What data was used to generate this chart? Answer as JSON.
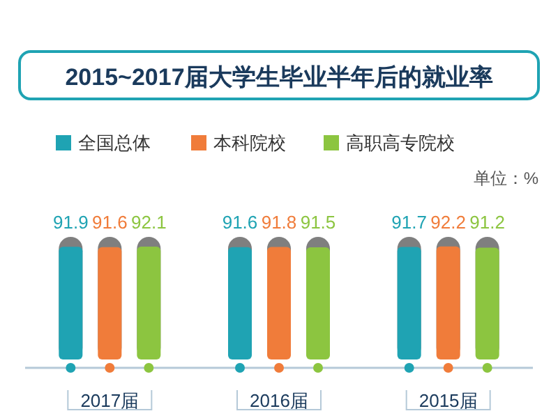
{
  "chart_data": {
    "type": "bar",
    "title": "2015~2017届大学生毕业半年后的就业率",
    "annotations": [
      "单位：%"
    ],
    "categories": [
      "2017届",
      "2016届",
      "2015届"
    ],
    "series": [
      {
        "name": "全国总体",
        "color": "#1fa3b3",
        "values": [
          91.9,
          91.6,
          91.7
        ]
      },
      {
        "name": "本科院校",
        "color": "#f07c3a",
        "values": [
          91.6,
          91.8,
          92.2
        ]
      },
      {
        "name": "高职高专院校",
        "color": "#8cc540",
        "values": [
          92.1,
          91.5,
          91.2
        ]
      }
    ],
    "ylim": [
      0,
      100
    ],
    "data_labels": true,
    "legend": "top",
    "tick_labels": "x"
  }
}
